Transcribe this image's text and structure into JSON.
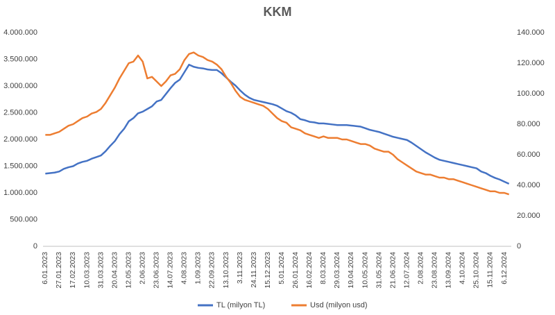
{
  "chart_data": {
    "type": "line",
    "title": "KKM",
    "categories": [
      "6.01.2023",
      null,
      null,
      "27.01.2023",
      null,
      null,
      "17.02.2023",
      null,
      null,
      "10.03.2023",
      null,
      null,
      "31.03.2023",
      null,
      null,
      "20.04.2023",
      null,
      null,
      "12.05.2023",
      null,
      null,
      "2.06.2023",
      null,
      null,
      "23.06.2023",
      null,
      null,
      "14.07.2023",
      null,
      null,
      "4.08.2023",
      null,
      null,
      "1.09.2023",
      null,
      null,
      "22.09.2023",
      null,
      null,
      "13.10.2023",
      null,
      null,
      "3.11.2023",
      null,
      null,
      "24.11.2023",
      null,
      null,
      "15.12.2023",
      null,
      null,
      "5.01.2024",
      null,
      null,
      "26.01.2024",
      null,
      null,
      "16.02.2024",
      null,
      null,
      "8.03.2024",
      null,
      null,
      "29.03.2024",
      null,
      null,
      "19.04.2024",
      null,
      null,
      "10.05.2024",
      null,
      null,
      "31.05.2024",
      null,
      null,
      "21.06.2024",
      null,
      null,
      "12.07.2024",
      null,
      null,
      "2.08.2024",
      null,
      null,
      "23.08.2024",
      null,
      null,
      "13.09.2024",
      null,
      null,
      "4.10.2024",
      null,
      null,
      "25.10.2024",
      null,
      null,
      "15.11.2024",
      null,
      null,
      "6.12.2024",
      null
    ],
    "series": [
      {
        "name": "TL (milyon TL)",
        "color": "#4472c4",
        "values": [
          1360000,
          1370000,
          1380000,
          1400000,
          1450000,
          1480000,
          1500000,
          1550000,
          1580000,
          1600000,
          1640000,
          1670000,
          1700000,
          1780000,
          1880000,
          1970000,
          2100000,
          2200000,
          2340000,
          2400000,
          2490000,
          2520000,
          2570000,
          2620000,
          2710000,
          2740000,
          2850000,
          2960000,
          3060000,
          3120000,
          3260000,
          3400000,
          3360000,
          3340000,
          3330000,
          3310000,
          3300000,
          3300000,
          3240000,
          3160000,
          3080000,
          3010000,
          2920000,
          2840000,
          2780000,
          2740000,
          2720000,
          2700000,
          2680000,
          2660000,
          2630000,
          2580000,
          2530000,
          2500000,
          2450000,
          2380000,
          2360000,
          2330000,
          2320000,
          2300000,
          2300000,
          2290000,
          2280000,
          2270000,
          2270000,
          2270000,
          2260000,
          2250000,
          2240000,
          2210000,
          2180000,
          2160000,
          2140000,
          2110000,
          2080000,
          2050000,
          2030000,
          2010000,
          1990000,
          1940000,
          1880000,
          1820000,
          1760000,
          1710000,
          1660000,
          1620000,
          1600000,
          1580000,
          1560000,
          1540000,
          1520000,
          1500000,
          1480000,
          1460000,
          1400000,
          1370000,
          1320000,
          1280000,
          1250000,
          1210000,
          1170000
        ]
      },
      {
        "name": "Usd (milyon usd)",
        "color": "#ed7d31",
        "axis": "y2",
        "values": [
          73000,
          73000,
          74000,
          75000,
          77000,
          79000,
          80000,
          82000,
          84000,
          85000,
          87000,
          88000,
          90000,
          94000,
          99000,
          104000,
          110000,
          115000,
          120000,
          121000,
          125000,
          121000,
          110000,
          111000,
          108000,
          105000,
          108000,
          112000,
          113000,
          116000,
          122000,
          126000,
          127000,
          125000,
          124000,
          122000,
          121000,
          119000,
          116000,
          111000,
          107000,
          102000,
          98000,
          96000,
          95000,
          94000,
          93000,
          92000,
          90000,
          87000,
          84000,
          82000,
          81000,
          78000,
          77000,
          76000,
          74000,
          73000,
          72000,
          71000,
          72000,
          71000,
          71000,
          71000,
          70000,
          70000,
          69000,
          68000,
          67000,
          67000,
          66000,
          64000,
          63000,
          62000,
          62000,
          60000,
          57000,
          55000,
          53000,
          51000,
          49000,
          48000,
          47000,
          47000,
          46000,
          45000,
          45000,
          44000,
          44000,
          43000,
          42000,
          41000,
          40000,
          39000,
          38000,
          37000,
          36000,
          36000,
          35000,
          35000,
          34000
        ]
      }
    ],
    "ylim": [
      0,
      4000000
    ],
    "yticks": [
      0,
      {
        "value": 500000,
        "label": "500.000"
      },
      {
        "value": 1000000,
        "label": "1.000.000"
      },
      {
        "value": 1500000,
        "label": "1.500.000"
      },
      {
        "value": 2000000,
        "label": "2.000.000"
      },
      {
        "value": 2500000,
        "label": "2.500.000"
      },
      {
        "value": 3000000,
        "label": "3.000.000"
      },
      {
        "value": 3500000,
        "label": "3.500.000"
      },
      {
        "value": 4000000,
        "label": "4.000.000"
      }
    ],
    "y2lim": [
      0,
      140000
    ],
    "y2ticks": [
      0,
      {
        "value": 20000,
        "label": "20.000"
      },
      {
        "value": 40000,
        "label": "40.000"
      },
      {
        "value": 60000,
        "label": "60.000"
      },
      {
        "value": 80000,
        "label": "80.000"
      },
      {
        "value": 100000,
        "label": "100.000"
      },
      {
        "value": 120000,
        "label": "120.000"
      },
      {
        "value": 140000,
        "label": "140.000"
      }
    ],
    "grid": false,
    "legend": "bottom"
  }
}
